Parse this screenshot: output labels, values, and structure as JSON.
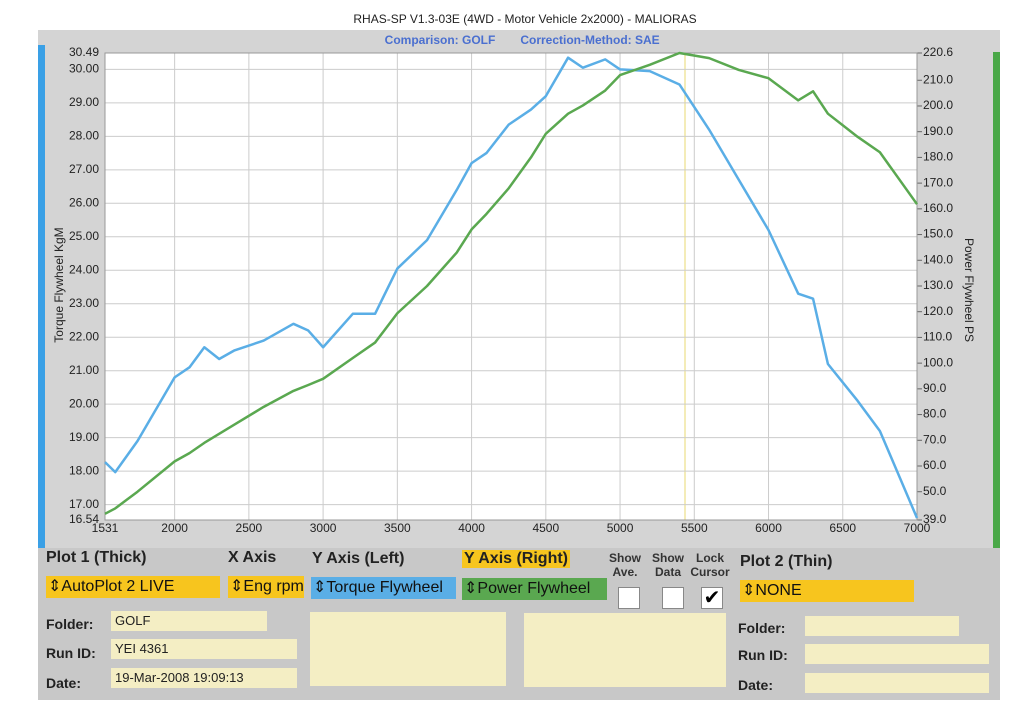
{
  "chart_data": {
    "type": "line",
    "title": "RHAS-SP V1.3-03E  (4WD - Motor Vehicle 2x2000) - MALIORAS",
    "subtitle": "Comparison: GOLF",
    "subtitle2": "Correction-Method: SAE",
    "ylabel": "Torque Flywheel KgM",
    "y2label": "Power Flywheel PS",
    "x": [
      1531,
      1600,
      1750,
      2000,
      2100,
      2200,
      2300,
      2400,
      2600,
      2800,
      2900,
      3000,
      3200,
      3350,
      3500,
      3700,
      3900,
      4000,
      4100,
      4250,
      4400,
      4500,
      4650,
      4750,
      4900,
      5000,
      5200,
      5400,
      5600,
      5800,
      6000,
      6200,
      6300,
      6400,
      6600,
      6750,
      7000
    ],
    "series": [
      {
        "name": "Torque Flywheel",
        "color": "#5aaee6",
        "values": [
          18.27,
          17.97,
          18.9,
          20.8,
          21.1,
          21.7,
          21.35,
          21.6,
          21.9,
          22.4,
          22.2,
          21.7,
          22.7,
          22.7,
          24.05,
          24.9,
          26.4,
          27.2,
          27.5,
          28.35,
          28.8,
          29.2,
          30.35,
          30.05,
          30.3,
          30.0,
          29.95,
          29.55,
          28.2,
          26.7,
          25.2,
          23.3,
          23.15,
          21.2,
          20.1,
          19.2,
          16.6
        ]
      },
      {
        "name": "Power Flywheel",
        "color": "#5aa850",
        "axis": "y2",
        "values": [
          41.4,
          43.5,
          50,
          61.8,
          65,
          69,
          72.5,
          76,
          83,
          89.2,
          91.5,
          93.9,
          102,
          108,
          119.4,
          130,
          143,
          152,
          158,
          168,
          180,
          189.2,
          197,
          200.2,
          206,
          212,
          216,
          220.6,
          218.6,
          214,
          210.8,
          202.2,
          205.7,
          197,
          188,
          182,
          161.8
        ]
      }
    ],
    "xlim": [
      1531,
      7000
    ],
    "xticks": [
      1531,
      2000,
      2500,
      3000,
      3500,
      4000,
      4500,
      5000,
      5500,
      6000,
      6500,
      7000
    ],
    "ylim": [
      16.54,
      30.49
    ],
    "yticks": [
      16.54,
      {
        "value": 17,
        "label": "17.00"
      },
      {
        "value": 18,
        "label": "18.00"
      },
      {
        "value": 19,
        "label": "19.00"
      },
      {
        "value": 20,
        "label": "20.00"
      },
      {
        "value": 21,
        "label": "21.00"
      },
      {
        "value": 22,
        "label": "22.00"
      },
      {
        "value": 23,
        "label": "23.00"
      },
      {
        "value": 24,
        "label": "24.00"
      },
      {
        "value": 25,
        "label": "25.00"
      },
      {
        "value": 26,
        "label": "26.00"
      },
      {
        "value": 27,
        "label": "27.00"
      },
      {
        "value": 28,
        "label": "28.00"
      },
      {
        "value": 29,
        "label": "29.00"
      },
      {
        "value": 30,
        "label": "30.00"
      },
      30.49
    ],
    "y2lim": [
      39.0,
      220.6
    ],
    "y2ticks": [
      {
        "value": 39,
        "label": "39.0"
      },
      {
        "value": 50,
        "label": "50.0"
      },
      {
        "value": 60,
        "label": "60.0"
      },
      {
        "value": 70,
        "label": "70.0"
      },
      {
        "value": 80,
        "label": "80.0"
      },
      {
        "value": 90,
        "label": "90.0"
      },
      {
        "value": 100,
        "label": "100.0"
      },
      {
        "value": 110,
        "label": "110.0"
      },
      {
        "value": 120,
        "label": "120.0"
      },
      {
        "value": 130,
        "label": "130.0"
      },
      {
        "value": 140,
        "label": "140.0"
      },
      {
        "value": 150,
        "label": "150.0"
      },
      {
        "value": 160,
        "label": "160.0"
      },
      {
        "value": 170,
        "label": "170.0"
      },
      {
        "value": 180,
        "label": "180.0"
      },
      {
        "value": 190,
        "label": "190.0"
      },
      {
        "value": 200,
        "label": "200.0"
      },
      {
        "value": 210,
        "label": "210.0"
      },
      220.6
    ],
    "grid": true
  },
  "panel": {
    "plot1": "Plot 1 (Thick)",
    "xaxis": "X Axis",
    "yleft": "Y Axis (Left)",
    "yright": "Y Axis (Right)",
    "show_ave": "Show Ave.",
    "show_data": "Show Data",
    "lock_cursor": "Lock Cursor",
    "plot2": "Plot 2 (Thin)",
    "plot1_value": "AutoPlot 2 LIVE",
    "xaxis_value": "Eng rpm",
    "yleft_value": "Torque Flywheel",
    "yright_value": "Power Flywheel",
    "plot2_value": "NONE",
    "folder_label": "Folder:",
    "runid_label": "Run ID:",
    "date_label": "Date:",
    "folder": "GOLF",
    "runid": "YEI 4361",
    "date": "19-Mar-2008  19:09:13"
  }
}
